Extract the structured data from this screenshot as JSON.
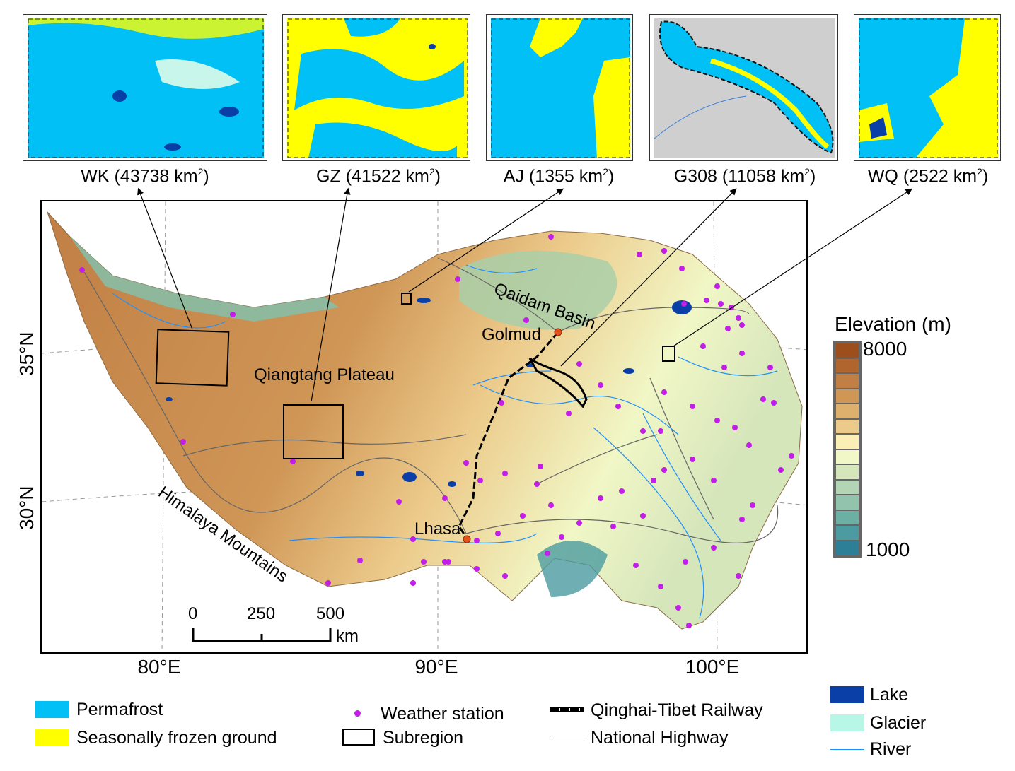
{
  "insets": [
    {
      "name": "WK",
      "area": "43738",
      "unit": "km",
      "exp": "2"
    },
    {
      "name": "GZ",
      "area": "41522",
      "unit": "km",
      "exp": "2"
    },
    {
      "name": "AJ",
      "area": "1355",
      "unit": "km",
      "exp": "2"
    },
    {
      "name": "G308",
      "area": "11058",
      "unit": "km",
      "exp": "2"
    },
    {
      "name": "WQ",
      "area": "2522",
      "unit": "km",
      "exp": "2"
    }
  ],
  "map": {
    "lat_labels": [
      "35°N",
      "30°N"
    ],
    "lon_labels": [
      "80°E",
      "90°E",
      "100°E"
    ],
    "places": {
      "qaidam": "Qaidam Basin",
      "golmud": "Golmud",
      "qiangtang": "Qiangtang Plateau",
      "lhasa": "Lhasa",
      "himalaya": "Himalaya Mountains"
    },
    "scale": {
      "ticks": [
        "0",
        "250",
        "500"
      ],
      "unit": "km"
    }
  },
  "elevation_legend": {
    "title": "Elevation (m)",
    "max": "8000",
    "min": "1000",
    "colors": [
      "#9c4f1c",
      "#b0652f",
      "#c17f45",
      "#cf9656",
      "#ddb06e",
      "#ecca8a",
      "#fbefb5",
      "#f1f7c6",
      "#d6e6bb",
      "#b3d5b6",
      "#92c3ad",
      "#6cb0a3",
      "#4b9ba0",
      "#2c7f97"
    ]
  },
  "legend": {
    "permafrost": {
      "label": "Permafrost",
      "color": "#00c0f5"
    },
    "seasonal": {
      "label": "Seasonally frozen ground",
      "color": "#ffff00"
    },
    "station": {
      "label": "Weather station",
      "color": "#c21ee8"
    },
    "subregion": {
      "label": "Subregion"
    },
    "railway": {
      "label": "Qinghai-Tibet Railway"
    },
    "highway": {
      "label": "National Highway",
      "color": "#666666"
    },
    "lake": {
      "label": "Lake",
      "color": "#0a3fa8"
    },
    "glacier": {
      "label": "Glacier",
      "color": "#b8f7e8"
    },
    "river": {
      "label": "River",
      "color": "#1e90ff"
    }
  }
}
